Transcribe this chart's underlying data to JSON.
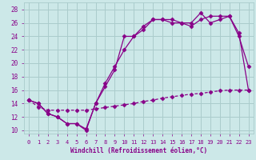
{
  "xlabel": "Windchill (Refroidissement éolien,°C)",
  "bg_color": "#cce8e8",
  "grid_color": "#aacccc",
  "line_color": "#880088",
  "x_ticks": [
    0,
    1,
    2,
    3,
    4,
    5,
    6,
    7,
    8,
    9,
    10,
    11,
    12,
    13,
    14,
    15,
    16,
    17,
    18,
    19,
    20,
    21,
    22,
    23
  ],
  "y_ticks": [
    10,
    12,
    14,
    16,
    18,
    20,
    22,
    24,
    26,
    28
  ],
  "ylim": [
    9.5,
    29.0
  ],
  "xlim": [
    -0.5,
    23.5
  ],
  "series1_x": [
    0,
    1,
    2,
    3,
    4,
    5,
    6,
    7,
    8,
    9,
    10,
    11,
    12,
    13,
    14,
    15,
    16,
    17,
    18,
    19,
    20,
    21,
    22,
    23
  ],
  "series1_y": [
    14.5,
    14.0,
    12.5,
    12.0,
    11.0,
    11.0,
    10.0,
    14.0,
    17.0,
    19.5,
    22.0,
    24.0,
    25.0,
    26.5,
    26.5,
    26.5,
    26.0,
    26.0,
    27.5,
    26.0,
    26.5,
    27.0,
    24.0,
    19.5
  ],
  "series2_x": [
    0,
    1,
    2,
    3,
    4,
    5,
    6,
    7,
    8,
    9,
    10,
    11,
    12,
    13,
    14,
    15,
    16,
    17,
    18,
    19,
    20,
    21,
    22,
    23
  ],
  "series2_y": [
    14.5,
    14.0,
    12.5,
    12.0,
    11.0,
    11.0,
    10.2,
    14.0,
    16.5,
    19.0,
    24.0,
    24.0,
    25.5,
    26.5,
    26.5,
    26.0,
    26.0,
    25.5,
    26.5,
    27.0,
    27.0,
    27.0,
    24.5,
    16.0
  ],
  "series3_x": [
    0,
    1,
    2,
    3,
    4,
    5,
    6,
    7,
    8,
    9,
    10,
    11,
    12,
    13,
    14,
    15,
    16,
    17,
    18,
    19,
    20,
    21,
    22,
    23
  ],
  "series3_y": [
    14.5,
    13.5,
    13.0,
    13.0,
    13.0,
    13.0,
    13.0,
    13.2,
    13.4,
    13.6,
    13.8,
    14.0,
    14.3,
    14.5,
    14.8,
    15.0,
    15.2,
    15.4,
    15.5,
    15.7,
    15.9,
    16.0,
    16.0,
    16.0
  ]
}
